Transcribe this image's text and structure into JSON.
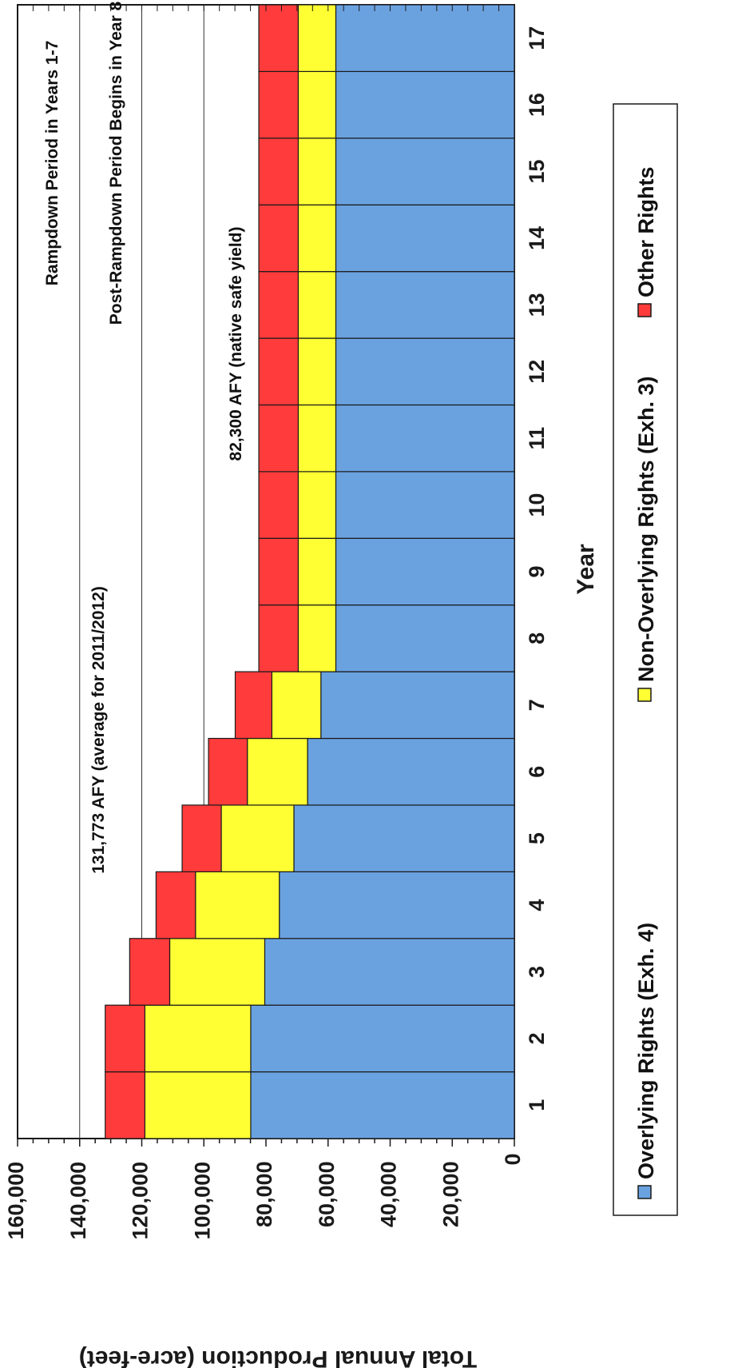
{
  "chart_data": {
    "type": "bar",
    "stacked": true,
    "orientation": "horizontal",
    "categories": [
      "1",
      "2",
      "3",
      "4",
      "5",
      "6",
      "7",
      "8",
      "9",
      "10",
      "11",
      "12",
      "13",
      "14",
      "15",
      "16",
      "17"
    ],
    "series": [
      {
        "name": "Overlying Rights (Exh. 4)",
        "color": "#6aa2e0",
        "values": [
          84900,
          84900,
          80400,
          75700,
          71000,
          66600,
          62300,
          57500,
          57500,
          57500,
          57500,
          57500,
          57500,
          57500,
          57500,
          57500,
          57500
        ]
      },
      {
        "name": "Non-Overlying Rights (Exh. 3)",
        "color": "#ffff33",
        "values": [
          34100,
          34100,
          30600,
          27000,
          23400,
          19400,
          15800,
          12100,
          12100,
          12100,
          12100,
          12100,
          12100,
          12100,
          12100,
          12100,
          12100
        ]
      },
      {
        "name": "Other Rights",
        "color": "#ff3b3b",
        "values": [
          12773,
          12773,
          12900,
          12700,
          12600,
          12500,
          11800,
          12700,
          12700,
          12700,
          12700,
          12700,
          12700,
          12700,
          12700,
          12700,
          12700
        ]
      }
    ],
    "xlabel": "Year",
    "ylabel": "Total Annual Production (acre-feet)",
    "ylim": [
      0,
      160000
    ],
    "yticks": [
      "0",
      "20,000",
      "40,000",
      "60,000",
      "80,000",
      "100,000",
      "120,000",
      "140,000",
      "160,000"
    ],
    "grid": false,
    "legend": "bottom",
    "annotations": [
      "Rampdown Period in Years 1-7",
      "Post-Rampdown Period Begins in Year 8",
      "131,773 AFY (average for 2011/2012)",
      "82,300 AFY (native safe yield)"
    ]
  }
}
